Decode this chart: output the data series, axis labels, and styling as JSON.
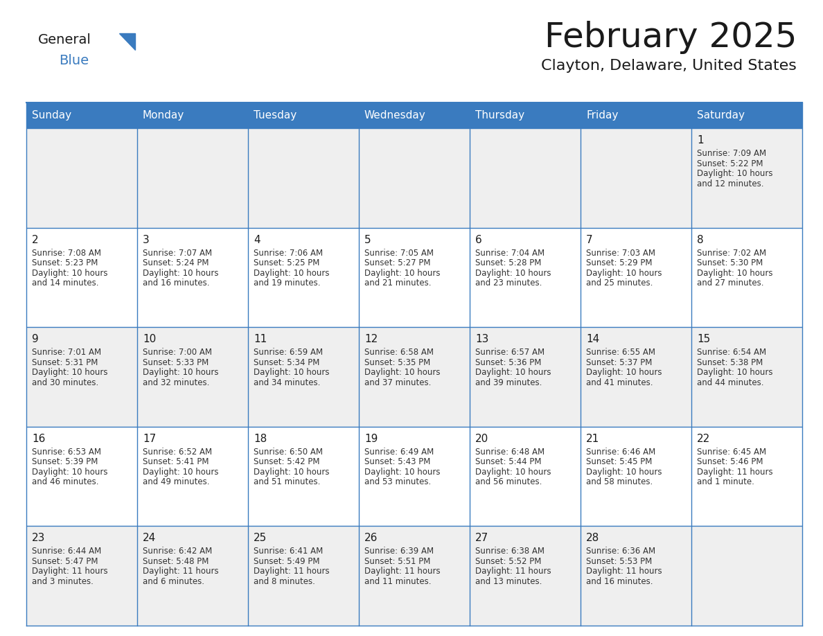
{
  "title": "February 2025",
  "subtitle": "Clayton, Delaware, United States",
  "header_bg": "#3a7bbf",
  "header_text_color": "#ffffff",
  "row_bg_odd": "#efefef",
  "row_bg_even": "#ffffff",
  "border_color": "#3a7bbf",
  "day_names": [
    "Sunday",
    "Monday",
    "Tuesday",
    "Wednesday",
    "Thursday",
    "Friday",
    "Saturday"
  ],
  "title_color": "#1a1a1a",
  "subtitle_color": "#1a1a1a",
  "day_num_color": "#1a1a1a",
  "cell_text_color": "#333333",
  "logo_general_color": "#1a1a1a",
  "logo_blue_color": "#3a7bbf",
  "calendar": [
    [
      {
        "day": 0,
        "info": ""
      },
      {
        "day": 0,
        "info": ""
      },
      {
        "day": 0,
        "info": ""
      },
      {
        "day": 0,
        "info": ""
      },
      {
        "day": 0,
        "info": ""
      },
      {
        "day": 0,
        "info": ""
      },
      {
        "day": 1,
        "info": "Sunrise: 7:09 AM\nSunset: 5:22 PM\nDaylight: 10 hours\nand 12 minutes."
      }
    ],
    [
      {
        "day": 2,
        "info": "Sunrise: 7:08 AM\nSunset: 5:23 PM\nDaylight: 10 hours\nand 14 minutes."
      },
      {
        "day": 3,
        "info": "Sunrise: 7:07 AM\nSunset: 5:24 PM\nDaylight: 10 hours\nand 16 minutes."
      },
      {
        "day": 4,
        "info": "Sunrise: 7:06 AM\nSunset: 5:25 PM\nDaylight: 10 hours\nand 19 minutes."
      },
      {
        "day": 5,
        "info": "Sunrise: 7:05 AM\nSunset: 5:27 PM\nDaylight: 10 hours\nand 21 minutes."
      },
      {
        "day": 6,
        "info": "Sunrise: 7:04 AM\nSunset: 5:28 PM\nDaylight: 10 hours\nand 23 minutes."
      },
      {
        "day": 7,
        "info": "Sunrise: 7:03 AM\nSunset: 5:29 PM\nDaylight: 10 hours\nand 25 minutes."
      },
      {
        "day": 8,
        "info": "Sunrise: 7:02 AM\nSunset: 5:30 PM\nDaylight: 10 hours\nand 27 minutes."
      }
    ],
    [
      {
        "day": 9,
        "info": "Sunrise: 7:01 AM\nSunset: 5:31 PM\nDaylight: 10 hours\nand 30 minutes."
      },
      {
        "day": 10,
        "info": "Sunrise: 7:00 AM\nSunset: 5:33 PM\nDaylight: 10 hours\nand 32 minutes."
      },
      {
        "day": 11,
        "info": "Sunrise: 6:59 AM\nSunset: 5:34 PM\nDaylight: 10 hours\nand 34 minutes."
      },
      {
        "day": 12,
        "info": "Sunrise: 6:58 AM\nSunset: 5:35 PM\nDaylight: 10 hours\nand 37 minutes."
      },
      {
        "day": 13,
        "info": "Sunrise: 6:57 AM\nSunset: 5:36 PM\nDaylight: 10 hours\nand 39 minutes."
      },
      {
        "day": 14,
        "info": "Sunrise: 6:55 AM\nSunset: 5:37 PM\nDaylight: 10 hours\nand 41 minutes."
      },
      {
        "day": 15,
        "info": "Sunrise: 6:54 AM\nSunset: 5:38 PM\nDaylight: 10 hours\nand 44 minutes."
      }
    ],
    [
      {
        "day": 16,
        "info": "Sunrise: 6:53 AM\nSunset: 5:39 PM\nDaylight: 10 hours\nand 46 minutes."
      },
      {
        "day": 17,
        "info": "Sunrise: 6:52 AM\nSunset: 5:41 PM\nDaylight: 10 hours\nand 49 minutes."
      },
      {
        "day": 18,
        "info": "Sunrise: 6:50 AM\nSunset: 5:42 PM\nDaylight: 10 hours\nand 51 minutes."
      },
      {
        "day": 19,
        "info": "Sunrise: 6:49 AM\nSunset: 5:43 PM\nDaylight: 10 hours\nand 53 minutes."
      },
      {
        "day": 20,
        "info": "Sunrise: 6:48 AM\nSunset: 5:44 PM\nDaylight: 10 hours\nand 56 minutes."
      },
      {
        "day": 21,
        "info": "Sunrise: 6:46 AM\nSunset: 5:45 PM\nDaylight: 10 hours\nand 58 minutes."
      },
      {
        "day": 22,
        "info": "Sunrise: 6:45 AM\nSunset: 5:46 PM\nDaylight: 11 hours\nand 1 minute."
      }
    ],
    [
      {
        "day": 23,
        "info": "Sunrise: 6:44 AM\nSunset: 5:47 PM\nDaylight: 11 hours\nand 3 minutes."
      },
      {
        "day": 24,
        "info": "Sunrise: 6:42 AM\nSunset: 5:48 PM\nDaylight: 11 hours\nand 6 minutes."
      },
      {
        "day": 25,
        "info": "Sunrise: 6:41 AM\nSunset: 5:49 PM\nDaylight: 11 hours\nand 8 minutes."
      },
      {
        "day": 26,
        "info": "Sunrise: 6:39 AM\nSunset: 5:51 PM\nDaylight: 11 hours\nand 11 minutes."
      },
      {
        "day": 27,
        "info": "Sunrise: 6:38 AM\nSunset: 5:52 PM\nDaylight: 11 hours\nand 13 minutes."
      },
      {
        "day": 28,
        "info": "Sunrise: 6:36 AM\nSunset: 5:53 PM\nDaylight: 11 hours\nand 16 minutes."
      },
      {
        "day": 0,
        "info": ""
      }
    ]
  ]
}
